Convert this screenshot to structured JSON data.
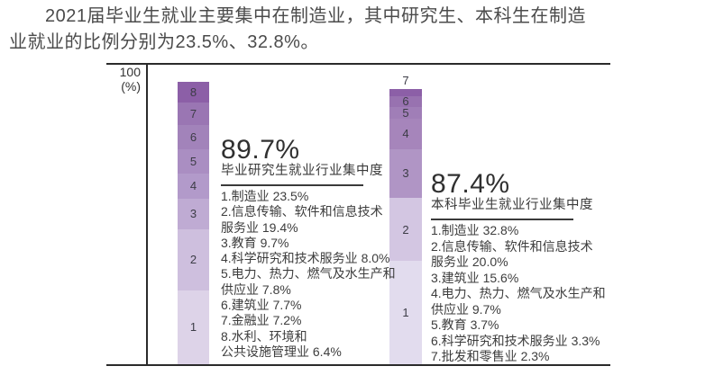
{
  "header": {
    "line1": "2021届毕业生就业主要集中在制造业，其中研究生、本科生在制造",
    "line2": "业就业的比例分别为23.5%、32.8%。"
  },
  "axis": {
    "max_label": "100",
    "unit_label": "(%)"
  },
  "chart_data": {
    "type": "bar",
    "subtype": "stacked-column",
    "unit": "%",
    "ylim": [
      0,
      100
    ],
    "grid": false,
    "legend_position": "none",
    "series": [
      {
        "name": "毕业研究生",
        "headline": "89.7%",
        "subtitle": "毕业研究生就业行业集中度",
        "total": 89.7,
        "segments": [
          {
            "rank": 1,
            "industry": "制造业",
            "pct": 23.5
          },
          {
            "rank": 2,
            "industry": "信息传输、软件和信息技术服务业",
            "pct": 19.4
          },
          {
            "rank": 3,
            "industry": "教育",
            "pct": 9.7
          },
          {
            "rank": 4,
            "industry": "科学研究和技术服务业",
            "pct": 8.0
          },
          {
            "rank": 5,
            "industry": "电力、热力、燃气及水生产和供应业",
            "pct": 7.8
          },
          {
            "rank": 6,
            "industry": "建筑业",
            "pct": 7.7
          },
          {
            "rank": 7,
            "industry": "金融业",
            "pct": 7.2
          },
          {
            "rank": 8,
            "industry": "水利、环境和公共设施管理业",
            "pct": 6.4
          }
        ],
        "list_lines": [
          "1.制造业   23.5%",
          "2.信息传输、软件和信息技术",
          "服务业   19.4%",
          "3.教育   9.7%",
          "4.科学研究和技术服务业   8.0%",
          "5.电力、热力、燃气及水生产和",
          "供应业   7.8%",
          "6.建筑业   7.7%",
          "7.金融业   7.2%",
          "8.水利、环境和",
          "公共设施管理业   6.4%"
        ],
        "colors": [
          "#ddd3e8",
          "#cebfde",
          "#bfabd3",
          "#b29aca",
          "#aa8ec2",
          "#a283ba",
          "#9a76b3",
          "#8c5fa7"
        ],
        "label_above_ranks": []
      },
      {
        "name": "本科毕业生",
        "headline": "87.4%",
        "subtitle": "本科毕业生就业行业集中度",
        "total": 87.4,
        "segments": [
          {
            "rank": 1,
            "industry": "制造业",
            "pct": 32.8
          },
          {
            "rank": 2,
            "industry": "信息传输、软件和信息技术服务业",
            "pct": 20.0
          },
          {
            "rank": 3,
            "industry": "建筑业",
            "pct": 15.6
          },
          {
            "rank": 4,
            "industry": "电力、热力、燃气及水生产和供应业",
            "pct": 9.7
          },
          {
            "rank": 5,
            "industry": "教育",
            "pct": 3.7
          },
          {
            "rank": 6,
            "industry": "科学研究和技术服务业",
            "pct": 3.3
          },
          {
            "rank": 7,
            "industry": "批发和零售业",
            "pct": 2.3
          }
        ],
        "list_lines": [
          "1.制造业   32.8%",
          "2.信息传输、软件和信息技术",
          "服务业   20.0%",
          "3.建筑业   15.6%",
          "4.电力、热力、燃气及水生产和",
          "供应业   9.7%",
          "5.教育   3.7%",
          "6.科学研究和技术服务业   3.3%",
          "7.批发和零售业   2.3%"
        ],
        "colors": [
          "#e2dcee",
          "#d3c6e2",
          "#b095c5",
          "#a685bb",
          "#a07eb7",
          "#9872b0",
          "#8c5fa7"
        ],
        "label_above_ranks": [
          7
        ]
      }
    ]
  }
}
